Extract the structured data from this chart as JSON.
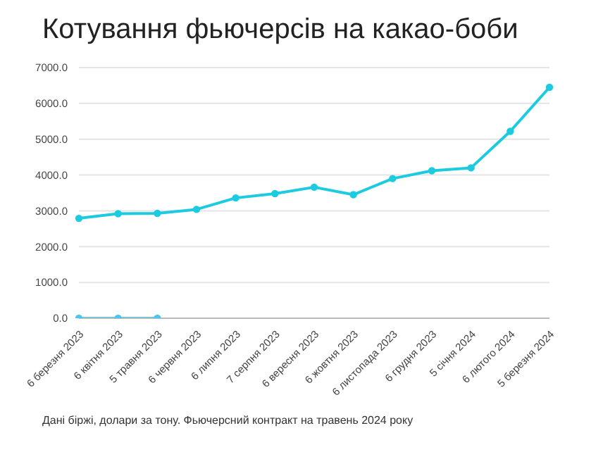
{
  "chart_data": {
    "type": "line",
    "title": "Котування фьючерсів на какао-боби",
    "categories": [
      "6 березня 2023",
      "6 квітня 2023",
      "5 травня 2023",
      "6 червня 2023",
      "6 липня 2023",
      "7 серпня 2023",
      "6 вересня 2023",
      "6 жовтня 2023",
      "6 листопада 2023",
      "6 грудня 2023",
      "5 січня 2024",
      "6 лютого 2024",
      "5 березня 2024"
    ],
    "series": [
      {
        "color": "#1ccbe0",
        "values": [
          2790,
          2920,
          2930,
          3040,
          3360,
          3480,
          3660,
          3450,
          3900,
          4120,
          4200,
          5220,
          6450
        ]
      },
      {
        "color": "#4cc5f5",
        "values": [
          0,
          0,
          0,
          null,
          null,
          null,
          null,
          null,
          null,
          null,
          null,
          null,
          null
        ]
      }
    ],
    "ylim": [
      0,
      7000
    ],
    "yticks": [
      {
        "value": 0,
        "label": "0.0"
      },
      {
        "value": 1000,
        "label": "1000.0"
      },
      {
        "value": 2000,
        "label": "2000.0"
      },
      {
        "value": 3000,
        "label": "3000.0"
      },
      {
        "value": 4000,
        "label": "4000.0"
      },
      {
        "value": 5000,
        "label": "5000.0"
      },
      {
        "value": 6000,
        "label": "6000.0"
      },
      {
        "value": 7000,
        "label": "7000.0"
      }
    ],
    "grid": "y",
    "marker": "circle",
    "line_style": "solid",
    "annotations": [
      "Дані біржі, долари за тону. Фьючерсний контракт на травень 2024 року"
    ]
  }
}
